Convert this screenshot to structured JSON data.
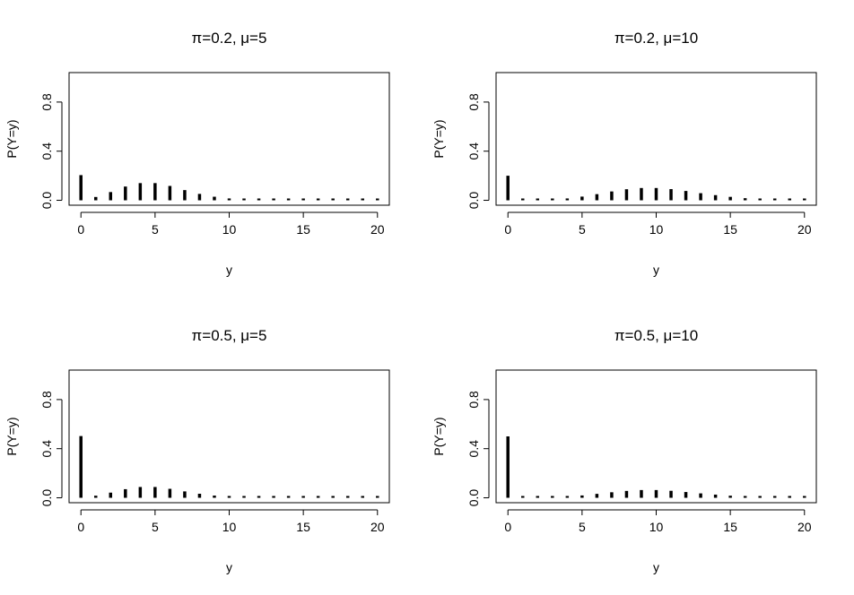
{
  "chart_data": [
    {
      "type": "bar",
      "title": "π=0.2, μ=5",
      "xlabel": "y",
      "ylabel": "P(Y=y)",
      "xlim": [
        0,
        20
      ],
      "ylim": [
        0,
        1
      ],
      "xticks": [
        "0",
        "5",
        "10",
        "15",
        "20"
      ],
      "yticks": [
        "0.0",
        "0.4",
        "0.8"
      ],
      "x": [
        0,
        1,
        2,
        3,
        4,
        5,
        6,
        7,
        8,
        9,
        10,
        11,
        12,
        13,
        14,
        15,
        16,
        17,
        18,
        19,
        20
      ],
      "values": [
        0.205,
        0.027,
        0.067,
        0.112,
        0.14,
        0.14,
        0.117,
        0.083,
        0.052,
        0.029,
        0.015,
        0.007,
        0.003,
        0.001,
        0.0005,
        0.0002,
        0.0001,
        0.0,
        0.0,
        0.0,
        0.0
      ]
    },
    {
      "type": "bar",
      "title": "π=0.2, μ=10",
      "xlabel": "y",
      "ylabel": "P(Y=y)",
      "xlim": [
        0,
        20
      ],
      "ylim": [
        0,
        1
      ],
      "xticks": [
        "0",
        "5",
        "10",
        "15",
        "20"
      ],
      "yticks": [
        "0.0",
        "0.4",
        "0.8"
      ],
      "x": [
        0,
        1,
        2,
        3,
        4,
        5,
        6,
        7,
        8,
        9,
        10,
        11,
        12,
        13,
        14,
        15,
        16,
        17,
        18,
        19,
        20
      ],
      "values": [
        0.2,
        0.0003,
        0.002,
        0.006,
        0.015,
        0.03,
        0.05,
        0.072,
        0.09,
        0.1,
        0.1,
        0.091,
        0.076,
        0.058,
        0.042,
        0.028,
        0.017,
        0.01,
        0.006,
        0.003,
        0.002
      ]
    },
    {
      "type": "bar",
      "title": "π=0.5, μ=5",
      "xlabel": "y",
      "ylabel": "P(Y=y)",
      "xlim": [
        0,
        20
      ],
      "ylim": [
        0,
        1
      ],
      "xticks": [
        "0",
        "5",
        "10",
        "15",
        "20"
      ],
      "yticks": [
        "0.0",
        "0.4",
        "0.8"
      ],
      "x": [
        0,
        1,
        2,
        3,
        4,
        5,
        6,
        7,
        8,
        9,
        10,
        11,
        12,
        13,
        14,
        15,
        16,
        17,
        18,
        19,
        20
      ],
      "values": [
        0.503,
        0.017,
        0.042,
        0.07,
        0.088,
        0.088,
        0.073,
        0.052,
        0.033,
        0.018,
        0.009,
        0.004,
        0.002,
        0.001,
        0.0003,
        0.0001,
        0.0,
        0.0,
        0.0,
        0.0,
        0.0
      ]
    },
    {
      "type": "bar",
      "title": "π=0.5, μ=10",
      "xlabel": "y",
      "ylabel": "P(Y=y)",
      "xlim": [
        0,
        20
      ],
      "ylim": [
        0,
        1
      ],
      "xticks": [
        "0",
        "5",
        "10",
        "15",
        "20"
      ],
      "yticks": [
        "0.0",
        "0.4",
        "0.8"
      ],
      "x": [
        0,
        1,
        2,
        3,
        4,
        5,
        6,
        7,
        8,
        9,
        10,
        11,
        12,
        13,
        14,
        15,
        16,
        17,
        18,
        19,
        20
      ],
      "values": [
        0.5,
        0.0002,
        0.001,
        0.004,
        0.009,
        0.019,
        0.032,
        0.045,
        0.056,
        0.063,
        0.063,
        0.057,
        0.047,
        0.036,
        0.026,
        0.017,
        0.011,
        0.006,
        0.004,
        0.002,
        0.001
      ]
    }
  ]
}
